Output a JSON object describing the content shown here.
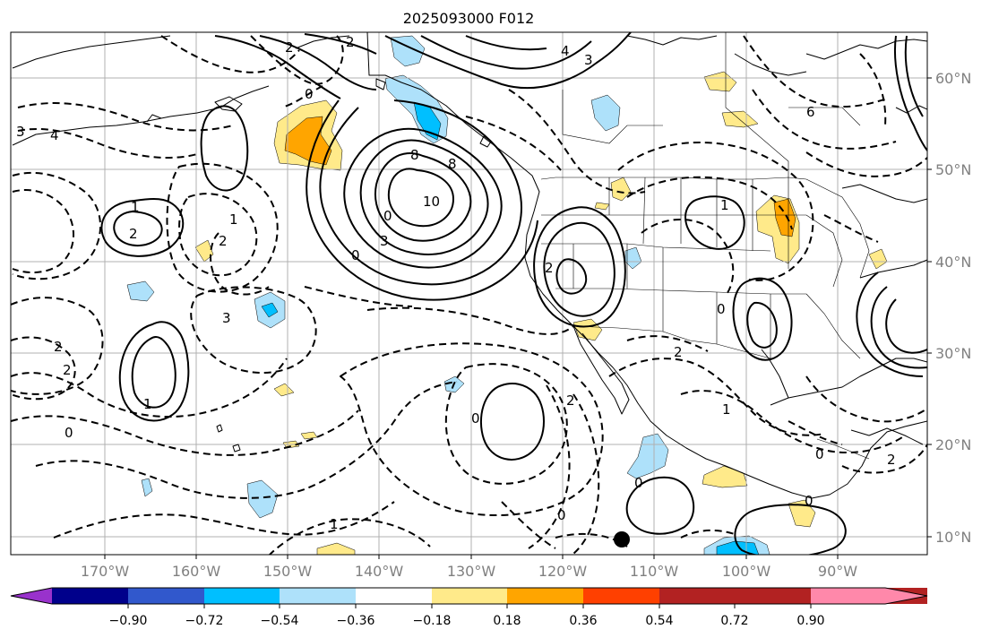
{
  "title": "2025093000 F012",
  "lon_labels": [
    "170°W",
    "160°W",
    "150°W",
    "140°W",
    "130°W",
    "120°W",
    "110°W",
    "100°W",
    "90°W"
  ],
  "lat_labels": [
    "60°N",
    "50°N",
    "40°N",
    "30°N",
    "20°N",
    "10°N"
  ],
  "colorbar": {
    "tick_labels": [
      "−0.90",
      "−0.72",
      "−0.54",
      "−0.36",
      "−0.18",
      "0.18",
      "0.36",
      "0.54",
      "0.72",
      "0.90"
    ],
    "colors": [
      "#9932cc",
      "#00008b",
      "#3158cc",
      "#00bfff",
      "#aee1fa",
      "#ffffff",
      "#ffea8a",
      "#ffa500",
      "#ff4000",
      "#b22222",
      "#ff88aa"
    ]
  },
  "contour_labels": {
    "c1": "2",
    "c2": "2",
    "c3": "0",
    "c4": "8",
    "c5": "10",
    "c6": "8",
    "c7": "0",
    "c8": "3",
    "c9": "1",
    "c10": "2",
    "c11": "2",
    "c12": "3",
    "c13": "2",
    "c14": "2",
    "c15": "1",
    "c16": "0",
    "c17": "0",
    "c18": "0",
    "c19": "1",
    "c20": "1",
    "c21": "2",
    "c22": "2",
    "c23": "0",
    "c24": "1",
    "c25": "0",
    "c26": "0",
    "c27": "0",
    "c28": "1",
    "c29": "2",
    "c30": "3",
    "c31": "4",
    "c32": "3",
    "c33": "6",
    "c34": "4",
    "c35": "2",
    "c36": "0"
  },
  "marker": "black-dot"
}
